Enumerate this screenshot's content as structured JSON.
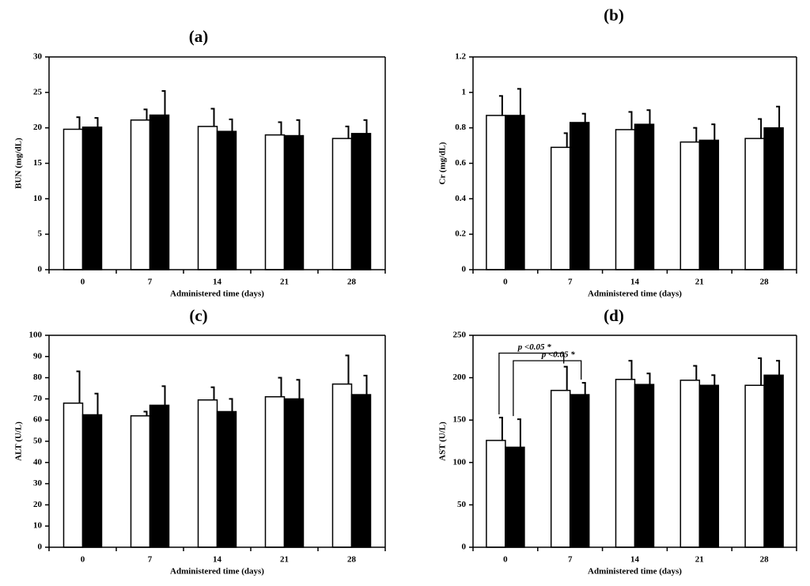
{
  "chart_data": [
    {
      "type": "bar",
      "panel_label": "(a)",
      "title": "",
      "xlabel": "Administered time (days)",
      "ylabel": "BUN (mg/dL)",
      "categories": [
        "0",
        "7",
        "14",
        "21",
        "28"
      ],
      "ylim": [
        0,
        30
      ],
      "yticks": [
        "0",
        "5",
        "10",
        "15",
        "20",
        "25",
        "30"
      ],
      "ytick_values": [
        0,
        5,
        10,
        15,
        20,
        25,
        30
      ],
      "grid": false,
      "series": [
        {
          "color": "#ffffff",
          "values": [
            19.8,
            21.1,
            20.2,
            19.0,
            18.5
          ],
          "errors": [
            1.7,
            1.5,
            2.5,
            1.8,
            1.7
          ]
        },
        {
          "color": "#000000",
          "values": [
            20.1,
            21.8,
            19.5,
            18.9,
            19.2
          ],
          "errors": [
            1.3,
            3.4,
            1.7,
            2.2,
            1.9
          ]
        }
      ],
      "annotations": []
    },
    {
      "type": "bar",
      "panel_label": "(b)",
      "title": "",
      "xlabel": "Administered time (days)",
      "ylabel": "Cr (mg/dL)",
      "categories": [
        "0",
        "7",
        "14",
        "21",
        "28"
      ],
      "ylim": [
        0,
        1.2
      ],
      "yticks": [
        "0",
        "0.2",
        "0.4",
        "0.6",
        "0.8",
        "1",
        "1.2"
      ],
      "ytick_values": [
        0,
        0.2,
        0.4,
        0.6,
        0.8,
        1.0,
        1.2
      ],
      "grid": false,
      "series": [
        {
          "color": "#ffffff",
          "values": [
            0.87,
            0.69,
            0.79,
            0.72,
            0.74
          ],
          "errors": [
            0.11,
            0.08,
            0.1,
            0.08,
            0.11
          ]
        },
        {
          "color": "#000000",
          "values": [
            0.87,
            0.83,
            0.82,
            0.73,
            0.8
          ],
          "errors": [
            0.15,
            0.05,
            0.08,
            0.09,
            0.12
          ]
        }
      ],
      "annotations": []
    },
    {
      "type": "bar",
      "panel_label": "(c)",
      "title": "",
      "xlabel": "Administered time (days)",
      "ylabel": "ALT (U/L)",
      "categories": [
        "0",
        "7",
        "14",
        "21",
        "28"
      ],
      "ylim": [
        0,
        100
      ],
      "yticks": [
        "0",
        "10",
        "20",
        "30",
        "40",
        "50",
        "60",
        "70",
        "80",
        "90",
        "100"
      ],
      "ytick_values": [
        0,
        10,
        20,
        30,
        40,
        50,
        60,
        70,
        80,
        90,
        100
      ],
      "grid": false,
      "series": [
        {
          "color": "#ffffff",
          "values": [
            68,
            62,
            69.5,
            71,
            77
          ],
          "errors": [
            15,
            2,
            6,
            9,
            13.5
          ]
        },
        {
          "color": "#000000",
          "values": [
            62.5,
            67,
            64,
            70,
            72
          ],
          "errors": [
            10,
            9,
            6,
            9,
            9
          ]
        }
      ],
      "annotations": []
    },
    {
      "type": "bar",
      "panel_label": "(d)",
      "title": "",
      "xlabel": "Administered time (days)",
      "ylabel": "AST (U/L)",
      "categories": [
        "0",
        "7",
        "14",
        "21",
        "28"
      ],
      "ylim": [
        0,
        250
      ],
      "yticks": [
        "0",
        "50",
        "100",
        "150",
        "200",
        "250"
      ],
      "ytick_values": [
        0,
        50,
        100,
        150,
        200,
        250
      ],
      "grid": false,
      "series": [
        {
          "color": "#ffffff",
          "values": [
            126,
            185,
            198,
            197,
            191
          ],
          "errors": [
            27,
            28,
            22,
            17,
            32
          ]
        },
        {
          "color": "#000000",
          "values": [
            118,
            180,
            192,
            191,
            203
          ],
          "errors": [
            33,
            14,
            13,
            12,
            17
          ]
        }
      ],
      "annotations": [
        {
          "text": "p <0.05 *",
          "from_category": 0,
          "to_category": 1,
          "series": 0,
          "level": 229
        },
        {
          "text": "p <0.05 *",
          "from_category": 0,
          "to_category": 1,
          "series": 1,
          "level": 220
        }
      ]
    }
  ]
}
